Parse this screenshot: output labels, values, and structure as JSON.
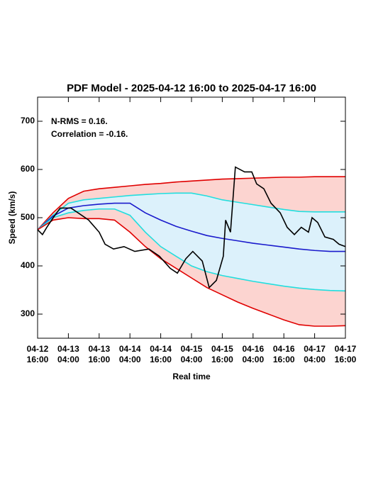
{
  "chart_data": {
    "type": "line",
    "title": "PDF Model - 2025-04-12 16:00 to 2025-04-17 16:00",
    "x_label": "Real time",
    "y_label": "Speed (km/s)",
    "annotations": [
      "N-RMS = 0.16.",
      "Correlation = -0.16."
    ],
    "x": [
      0,
      6,
      12,
      18,
      24,
      30,
      36,
      42,
      48,
      54,
      60,
      66,
      72,
      78,
      84,
      90,
      96,
      102,
      108,
      114,
      120
    ],
    "series": [
      {
        "color": "#e00000",
        "values": [
          475,
          510,
          540,
          555,
          560,
          563,
          566,
          569,
          571,
          574,
          576,
          578,
          580,
          581,
          582,
          583,
          584,
          584,
          585,
          585,
          585
        ]
      },
      {
        "color": "#22dede",
        "values": [
          475,
          505,
          530,
          537,
          540,
          543,
          546,
          548,
          550,
          551,
          551,
          545,
          537,
          532,
          527,
          522,
          517,
          513,
          512,
          512,
          512
        ]
      },
      {
        "color": "#1a1acc",
        "values": [
          475,
          503,
          520,
          525,
          528,
          530,
          530,
          510,
          495,
          482,
          472,
          463,
          457,
          452,
          447,
          443,
          439,
          435,
          432,
          430,
          430
        ]
      },
      {
        "color": "#22dede",
        "values": [
          475,
          500,
          510,
          515,
          518,
          518,
          505,
          470,
          440,
          420,
          400,
          388,
          380,
          374,
          368,
          363,
          358,
          354,
          351,
          349,
          348
        ]
      },
      {
        "color": "#e00000",
        "values": [
          475,
          495,
          500,
          498,
          498,
          495,
          470,
          440,
          415,
          395,
          375,
          355,
          340,
          325,
          312,
          300,
          288,
          278,
          275,
          275,
          276
        ]
      },
      {
        "color": "#000000",
        "x": [
          0,
          1.9,
          3.6,
          6.1,
          8.8,
          13,
          15.8,
          19.9,
          24,
          26.3,
          29.6,
          33.7,
          37.9,
          43.4,
          47.5,
          51.7,
          54.5,
          57.8,
          60.5,
          64.2,
          66.9,
          69.7,
          72.4,
          73.3,
          75.2,
          77.1,
          80.7,
          83.5,
          85.4,
          88.2,
          91,
          94.6,
          97.3,
          100.1,
          102.8,
          105.6,
          107,
          109.2,
          112,
          115.3,
          117.5,
          120
        ],
        "values": [
          475,
          465,
          480,
          500,
          520,
          520,
          510,
          495,
          470,
          445,
          435,
          440,
          430,
          435,
          420,
          395,
          385,
          415,
          430,
          410,
          355,
          370,
          420,
          495,
          470,
          605,
          595,
          595,
          570,
          560,
          530,
          510,
          480,
          465,
          480,
          470,
          500,
          490,
          460,
          455,
          445,
          440
        ]
      }
    ],
    "fill_colors": [
      "#fcd4d0",
      "#dcf1fb"
    ],
    "xlim": [
      0,
      120
    ],
    "ylim": [
      250,
      750
    ],
    "xticks": [
      {
        "value": 0,
        "label": "04-12 16:00"
      },
      {
        "value": 12,
        "label": "04-13 04:00"
      },
      {
        "value": 24,
        "label": "04-13 16:00"
      },
      {
        "value": 36,
        "label": "04-14 04:00"
      },
      {
        "value": 48,
        "label": "04-14 16:00"
      },
      {
        "value": 60,
        "label": "04-15 04:00"
      },
      {
        "value": 72,
        "label": "04-15 16:00"
      },
      {
        "value": 84,
        "label": "04-16 04:00"
      },
      {
        "value": 96,
        "label": "04-16 16:00"
      },
      {
        "value": 108,
        "label": "04-17 04:00"
      },
      {
        "value": 120,
        "label": "04-17 16:00"
      }
    ],
    "yticks": [
      300,
      400,
      500,
      600,
      700
    ]
  }
}
